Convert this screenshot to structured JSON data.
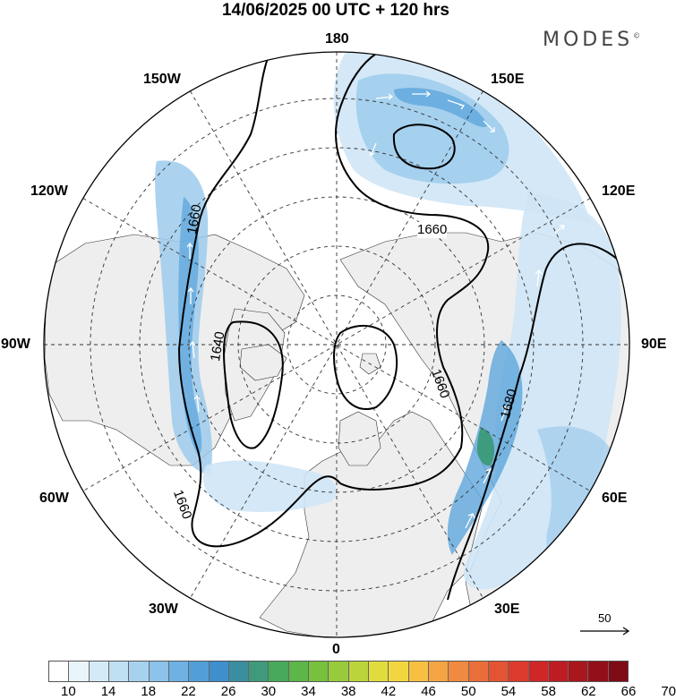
{
  "title": "14/06/2025  00 UTC  + 120 hrs",
  "brand": "MODES",
  "brand_mark": "©",
  "longitude_labels": {
    "n180": "180",
    "w150": "150W",
    "e150": "150E",
    "w120": "120W",
    "e120": "120E",
    "w90": "90W",
    "e90": "90E",
    "w60": "60W",
    "e60": "60E",
    "w30": "30W",
    "e30": "30E",
    "s0": "0"
  },
  "contour_labels": [
    "1660",
    "1660",
    "1640",
    "1660",
    "1660",
    "1680"
  ],
  "wind_scale": {
    "value": "50"
  },
  "colorbar": {
    "tick_labels": [
      "10",
      "14",
      "18",
      "22",
      "26",
      "30",
      "34",
      "38",
      "42",
      "46",
      "50",
      "54",
      "58",
      "62",
      "66",
      "70"
    ],
    "colors": [
      "#ffffff",
      "#eaf4fb",
      "#d5eaf7",
      "#bfdff3",
      "#a7d2ef",
      "#8cc3ea",
      "#6fb1e2",
      "#529fd8",
      "#3d8fcd",
      "#3a8ea0",
      "#3e9a7a",
      "#48a85b",
      "#5cb648",
      "#78c13e",
      "#98cb3c",
      "#bcd43b",
      "#e1dc3e",
      "#f2d640",
      "#f7c043",
      "#f5a443",
      "#f08a40",
      "#ea6e3a",
      "#e35432",
      "#dc3a2c",
      "#cf2626",
      "#bd1d22",
      "#a8161e",
      "#93101a",
      "#7e0b16"
    ]
  },
  "colors": {
    "land": "#eeeeee",
    "ocean": "#ffffff",
    "jet_light": "#cfe6f6",
    "jet_mid": "#9ccbec",
    "jet_core": "#5ea6dc",
    "jet_max": "#3c9a78",
    "contour": "#000000"
  }
}
